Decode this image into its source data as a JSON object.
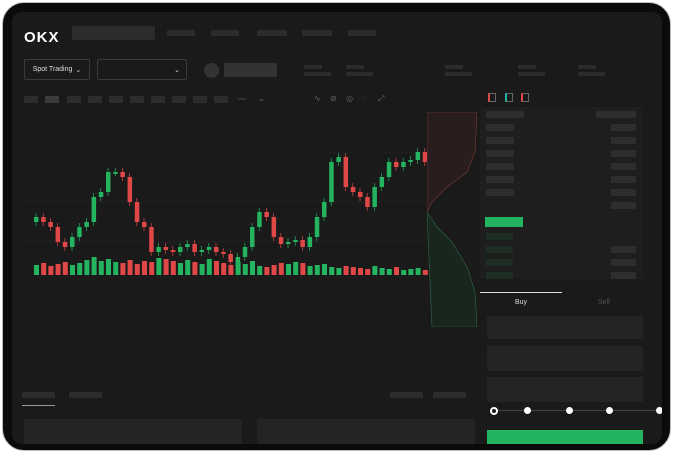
{
  "header": {
    "logo": "OKX"
  },
  "selectors": {
    "market_type": "Spot Trading",
    "pair": ""
  },
  "order_form": {
    "tabs": [
      "Buy",
      "Sell"
    ],
    "active_tab": "Buy",
    "leverage_steps": 5,
    "selected_step": 0
  },
  "colors": {
    "up": "#24b35f",
    "down": "#e04848",
    "background": "#1a1a1a"
  },
  "icons": [
    "chevron-down-icon",
    "indicator-icon",
    "draw-line-icon",
    "settings-icon",
    "fullscreen-icon",
    "orderbook-both-icon",
    "orderbook-bids-icon",
    "orderbook-asks-icon"
  ],
  "chart_data": {
    "type": "candlestick",
    "closes": [
      95,
      90,
      85,
      70,
      65,
      75,
      85,
      90,
      115,
      120,
      140,
      140,
      135,
      110,
      90,
      85,
      60,
      65,
      62,
      60,
      65,
      68,
      60,
      62,
      65,
      60,
      58,
      50,
      55,
      65,
      85,
      100,
      95,
      75,
      68,
      70,
      72,
      65,
      75,
      95,
      110,
      150,
      155,
      125,
      120,
      115,
      105,
      125,
      135,
      150,
      145,
      150,
      152,
      160,
      150
    ],
    "volumes": [
      10,
      12,
      9,
      11,
      13,
      10,
      12,
      15,
      18,
      14,
      16,
      13,
      12,
      15,
      11,
      14,
      13,
      17,
      16,
      14,
      12,
      15,
      13,
      11,
      16,
      14,
      12,
      10,
      13,
      11,
      14,
      9,
      8,
      10,
      12,
      11,
      13,
      12,
      9,
      10,
      11,
      8,
      7,
      9,
      8,
      7,
      6,
      9,
      7,
      6,
      8,
      5,
      6,
      7,
      5
    ]
  }
}
